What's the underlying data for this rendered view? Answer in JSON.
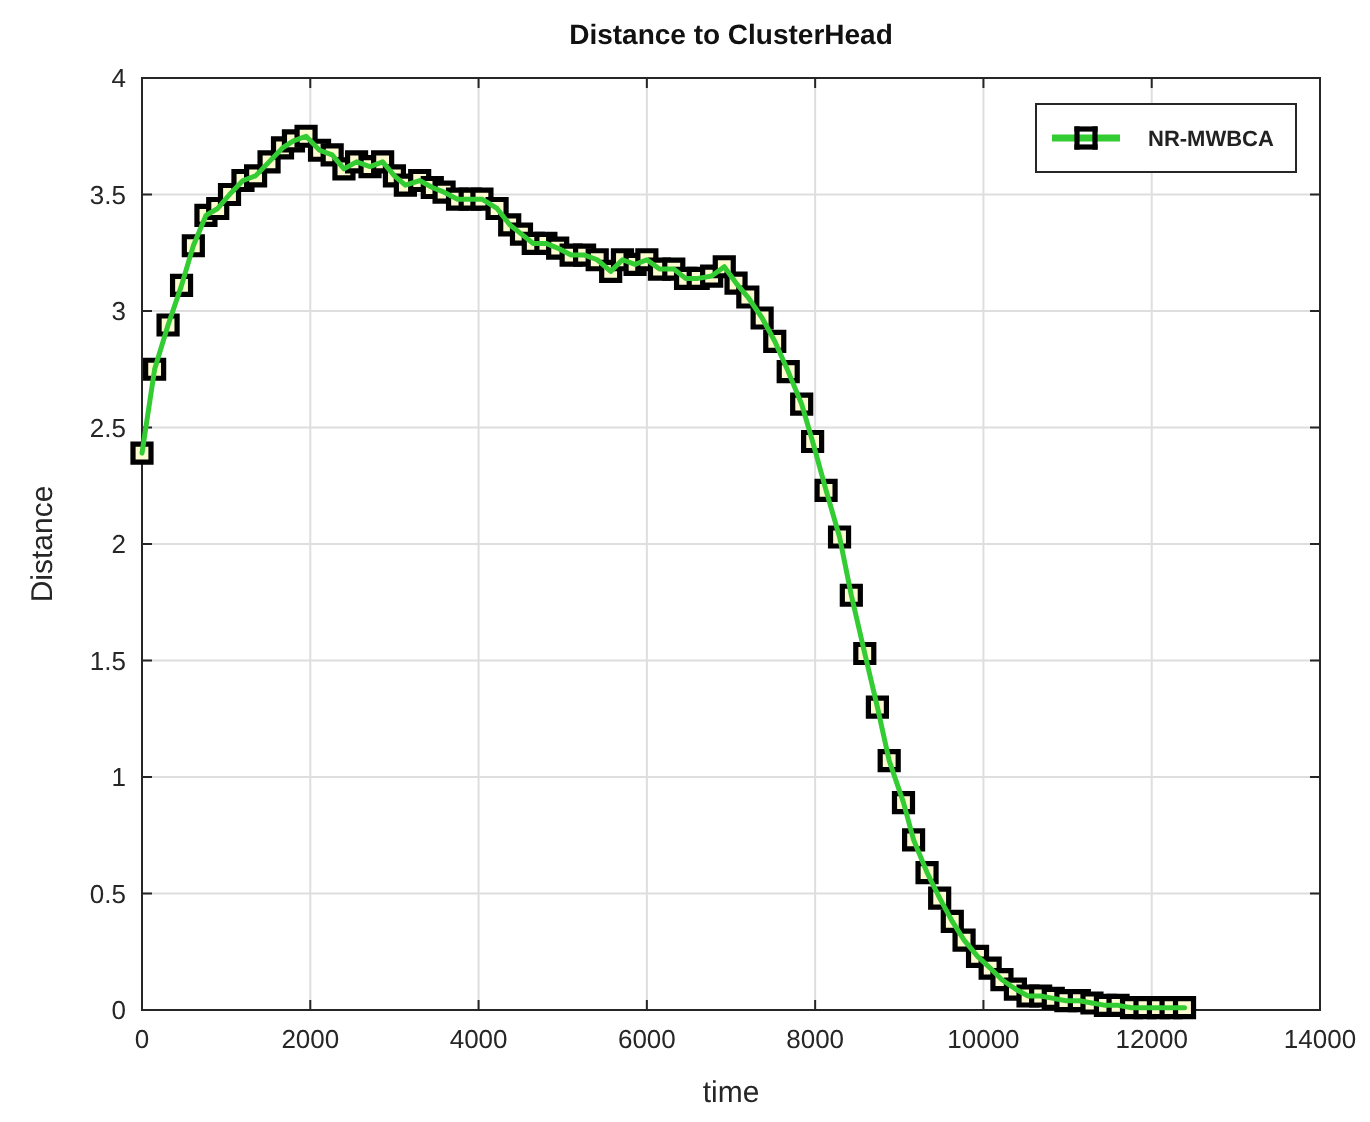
{
  "chart_data": {
    "type": "line",
    "title": "Distance to ClusterHead",
    "xlabel": "time",
    "ylabel": "Distance",
    "xlim": [
      0,
      14000
    ],
    "xticks": [
      0,
      2000,
      4000,
      6000,
      8000,
      10000,
      12000,
      14000
    ],
    "ylim": [
      0,
      4
    ],
    "yticks": [
      0,
      0.5,
      1,
      1.5,
      2,
      2.5,
      3,
      3.5,
      4
    ],
    "grid": true,
    "legend": "top right",
    "marker": "square",
    "line_style": "solid",
    "x": [
      0,
      150,
      310,
      470,
      610,
      760,
      900,
      1040,
      1200,
      1350,
      1510,
      1670,
      1800,
      1950,
      2110,
      2260,
      2400,
      2550,
      2710,
      2860,
      3000,
      3130,
      3300,
      3450,
      3590,
      3750,
      3900,
      4040,
      4220,
      4370,
      4510,
      4650,
      4800,
      4940,
      5100,
      5260,
      5410,
      5570,
      5710,
      5860,
      6000,
      6150,
      6320,
      6460,
      6610,
      6770,
      6920,
      7060,
      7200,
      7370,
      7520,
      7680,
      7840,
      7970,
      8130,
      8290,
      8430,
      8590,
      8740,
      8880,
      9050,
      9170,
      9330,
      9480,
      9630,
      9770,
      9930,
      10080,
      10220,
      10380,
      10530,
      10680,
      10830,
      10980,
      11140,
      11290,
      11450,
      11600,
      11760,
      11920,
      12080,
      12230,
      12390
    ],
    "series": [
      {
        "name": "NR-MWBCA",
        "color": "#33cc33",
        "values": [
          2.39,
          2.75,
          2.94,
          3.11,
          3.28,
          3.41,
          3.44,
          3.5,
          3.56,
          3.58,
          3.64,
          3.7,
          3.73,
          3.75,
          3.69,
          3.67,
          3.61,
          3.64,
          3.62,
          3.64,
          3.58,
          3.54,
          3.56,
          3.53,
          3.51,
          3.48,
          3.48,
          3.48,
          3.44,
          3.37,
          3.33,
          3.29,
          3.29,
          3.27,
          3.24,
          3.24,
          3.22,
          3.17,
          3.22,
          3.2,
          3.22,
          3.18,
          3.18,
          3.14,
          3.14,
          3.15,
          3.19,
          3.12,
          3.06,
          2.97,
          2.87,
          2.74,
          2.6,
          2.44,
          2.23,
          2.03,
          1.78,
          1.53,
          1.3,
          1.07,
          0.89,
          0.73,
          0.59,
          0.48,
          0.38,
          0.3,
          0.23,
          0.18,
          0.13,
          0.09,
          0.06,
          0.06,
          0.05,
          0.04,
          0.04,
          0.03,
          0.02,
          0.02,
          0.01,
          0.01,
          0.01,
          0.01,
          0.01
        ]
      }
    ]
  }
}
